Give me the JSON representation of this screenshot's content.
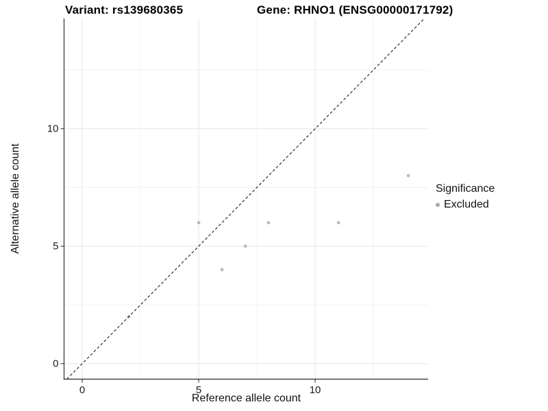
{
  "header": {
    "variant_title": "Variant: rs139680365",
    "gene_title": "Gene: RHNO1 (ENSG00000171792)"
  },
  "chart_data": {
    "type": "scatter",
    "xlabel": "Reference allele count",
    "ylabel": "Alternative allele count",
    "xlim": [
      -0.78,
      14.85
    ],
    "ylim": [
      -0.66,
      14.69
    ],
    "x_major_ticks": [
      0,
      5,
      10
    ],
    "y_major_ticks": [
      0,
      5,
      10
    ],
    "x_minor_ticks": [
      2.5,
      7.5,
      12.5
    ],
    "y_minor_ticks": [
      2.5,
      7.5,
      12.5
    ],
    "grid": "major and minor gridlines on white panel, left/bottom axis lines only",
    "identity_line": {
      "equation": "y = x",
      "style": "dashed",
      "color": "#1a1a1a"
    },
    "series": [
      {
        "name": "Excluded",
        "color": "#b9b9b9",
        "points": [
          [
            2,
            2
          ],
          [
            5,
            6
          ],
          [
            6,
            4
          ],
          [
            7,
            5
          ],
          [
            8,
            6
          ],
          [
            11,
            6
          ],
          [
            14,
            8
          ]
        ]
      }
    ],
    "legend": {
      "title": "Significance",
      "position": "right",
      "items": [
        {
          "label": "Excluded",
          "color": "#a9a9a9"
        }
      ]
    }
  },
  "colors": {
    "background": "#ffffff",
    "grid_major": "#e4e4e4",
    "grid_minor": "#f1f1f1",
    "axis_line": "#2b2b2b",
    "tick": "#333333",
    "tick_label": "#1a1a1a",
    "point": "#b9b9b9"
  }
}
